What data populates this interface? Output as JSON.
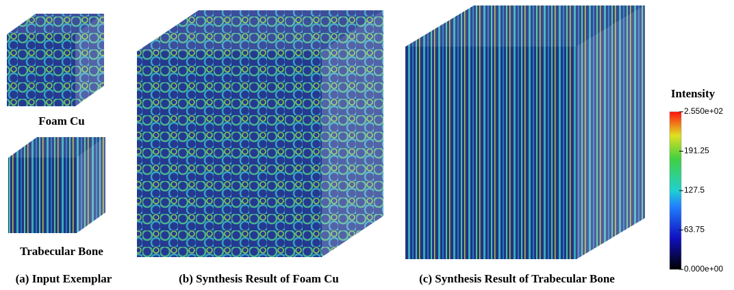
{
  "panels": [
    {
      "label": "Foam Cu"
    },
    {
      "label": "Trabecular Bone"
    },
    {
      "label": "(a) Input Exemplar"
    },
    {
      "label": "(b) Synthesis Result of Foam Cu"
    },
    {
      "label": "(c) Synthesis Result of Trabecular Bone"
    }
  ],
  "colorbar": {
    "title": "Intensity",
    "lim": [
      0,
      255
    ],
    "ticks": [
      {
        "value": 255,
        "label": "2.550e+02"
      },
      191.25,
      127.5,
      63.75,
      {
        "value": 0,
        "label": "0.000e+00"
      }
    ]
  }
}
